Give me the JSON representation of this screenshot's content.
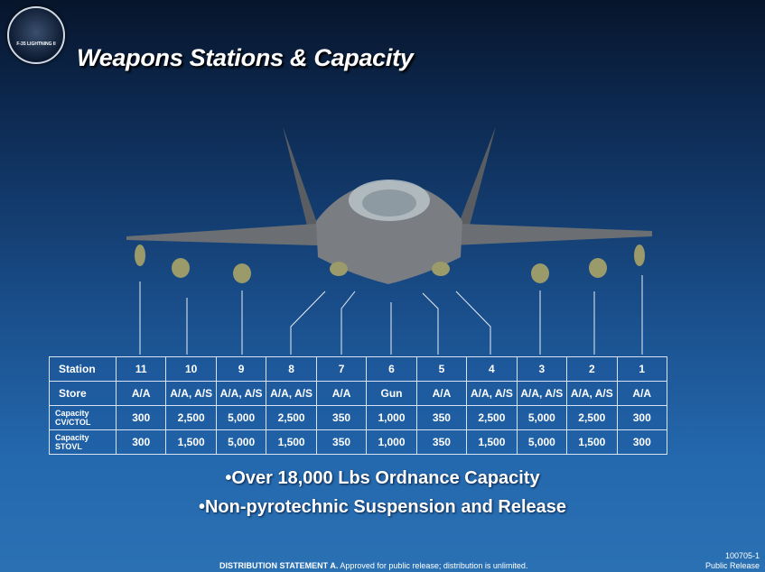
{
  "logo": {
    "text": "F-35 LIGHTNING II"
  },
  "title": "Weapons Stations & Capacity",
  "table": {
    "rows": [
      {
        "label": "Station",
        "cells": [
          "11",
          "10",
          "9",
          "8",
          "7",
          "6",
          "5",
          "4",
          "3",
          "2",
          "1"
        ]
      },
      {
        "label": "Store",
        "cells": [
          "A/A",
          "A/A, A/S",
          "A/A, A/S",
          "A/A, A/S",
          "A/A",
          "Gun",
          "A/A",
          "A/A, A/S",
          "A/A, A/S",
          "A/A, A/S",
          "A/A"
        ]
      },
      {
        "label": "Capacity CV/CTOL",
        "cells": [
          "300",
          "2,500",
          "5,000",
          "2,500",
          "350",
          "1,000",
          "350",
          "2,500",
          "5,000",
          "2,500",
          "300"
        ]
      },
      {
        "label": "Capacity STOVL",
        "cells": [
          "300",
          "1,500",
          "5,000",
          "1,500",
          "350",
          "1,000",
          "350",
          "1,500",
          "5,000",
          "1,500",
          "300"
        ]
      }
    ]
  },
  "bullets": [
    "•Over 18,000 Lbs Ordnance Capacity",
    "•Non-pyrotechnic Suspension and Release"
  ],
  "footer": {
    "bold": "DISTRIBUTION STATEMENT A.",
    "text": " Approved for public release; distribution is unlimited.",
    "code": "100705-1",
    "release": "Public Release"
  }
}
